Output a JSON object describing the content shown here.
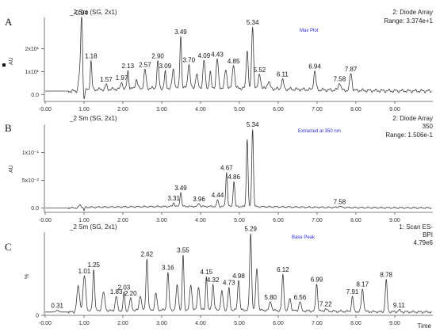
{
  "chart_data": [
    {
      "type": "line",
      "panel_label": "A",
      "sample_label": "_2 Sm (SG, 2x1)",
      "detector": "2: Diode Array",
      "range_text": "Range: 3.374e+1",
      "trace_label": "Max Plot",
      "extra_text": "",
      "ylabel": "AU",
      "yticks": [
        {
          "v": 0,
          "label": "0.0"
        },
        {
          "v": 10,
          "label": "1x10¹"
        },
        {
          "v": 20,
          "label": "2x10¹"
        }
      ],
      "ylim": [
        -3,
        33.7
      ],
      "xlim": [
        -0.02,
        9.98
      ],
      "baseline": 1.5,
      "noise": 0.8,
      "peaks": [
        {
          "x": 0.9,
          "y": 8.0,
          "w": 0.05
        },
        {
          "x": 0.94,
          "y": 29.0,
          "w": 0.03,
          "label": "0.94"
        },
        {
          "x": 1.0,
          "y": -4.0,
          "w": 0.03
        },
        {
          "x": 1.18,
          "y": 12.5,
          "w": 0.03,
          "label": "1.18"
        },
        {
          "x": 1.57,
          "y": 2.0,
          "w": 0.03,
          "label": "1.57"
        },
        {
          "x": 1.97,
          "y": 3.5,
          "w": 0.03,
          "label": "1.97"
        },
        {
          "x": 2.13,
          "y": 8.0,
          "w": 0.03,
          "label": "2.13"
        },
        {
          "x": 2.35,
          "y": 4.0,
          "w": 0.04
        },
        {
          "x": 2.57,
          "y": 8.0,
          "w": 0.04,
          "label": "2.57"
        },
        {
          "x": 2.9,
          "y": 11.5,
          "w": 0.035,
          "label": "2.90"
        },
        {
          "x": 3.09,
          "y": 7.0,
          "w": 0.03,
          "label": "3.09"
        },
        {
          "x": 3.3,
          "y": 8.0,
          "w": 0.04
        },
        {
          "x": 3.49,
          "y": 23.0,
          "w": 0.03,
          "label": "3.49"
        },
        {
          "x": 3.7,
          "y": 10.5,
          "w": 0.04,
          "label": "3.70"
        },
        {
          "x": 3.9,
          "y": 6.0,
          "w": 0.04
        },
        {
          "x": 4.09,
          "y": 12.0,
          "w": 0.04,
          "label": "4.09"
        },
        {
          "x": 4.25,
          "y": 7.0,
          "w": 0.03
        },
        {
          "x": 4.43,
          "y": 12.5,
          "w": 0.04,
          "label": "4.43"
        },
        {
          "x": 4.65,
          "y": 8.0,
          "w": 0.04
        },
        {
          "x": 4.85,
          "y": 10.5,
          "w": 0.04,
          "label": "4.85"
        },
        {
          "x": 5.2,
          "y": 17.0,
          "w": 0.035
        },
        {
          "x": 5.34,
          "y": 27.0,
          "w": 0.035,
          "label": "5.34"
        },
        {
          "x": 5.52,
          "y": 6.5,
          "w": 0.04,
          "label": "5.52"
        },
        {
          "x": 5.75,
          "y": 3.0,
          "w": 0.05
        },
        {
          "x": 6.11,
          "y": 4.0,
          "w": 0.04,
          "label": "6.11"
        },
        {
          "x": 6.94,
          "y": 8.0,
          "w": 0.04,
          "label": "6.94"
        },
        {
          "x": 7.58,
          "y": 3.5,
          "w": 0.04,
          "label": "7.58"
        },
        {
          "x": 7.87,
          "y": 7.5,
          "w": 0.04,
          "label": "7.87"
        }
      ]
    },
    {
      "type": "line",
      "panel_label": "B",
      "sample_label": "_2 Sm (SG, 2x1)",
      "detector": "2: Diode Array",
      "range_text": "Range: 1.506e-1",
      "trace_label": "Extracted at 350 nm",
      "extra_text": "350",
      "ylabel": "AU",
      "yticks": [
        {
          "v": 0,
          "label": "0.0"
        },
        {
          "v": 0.05,
          "label": "5x10⁻²"
        },
        {
          "v": 0.1,
          "label": "1x10⁻¹"
        }
      ],
      "ylim": [
        -0.008,
        0.1506
      ],
      "xlim": [
        -0.02,
        9.98
      ],
      "baseline": 0.0,
      "noise": 0.0015,
      "peaks": [
        {
          "x": 0.9,
          "y": 0.004,
          "w": 0.04
        },
        {
          "x": 1.0,
          "y": -0.006,
          "w": 0.02
        },
        {
          "x": 3.31,
          "y": 0.007,
          "w": 0.03,
          "label": "3.31"
        },
        {
          "x": 3.49,
          "y": 0.026,
          "w": 0.03,
          "label": "3.49"
        },
        {
          "x": 3.96,
          "y": 0.006,
          "w": 0.03,
          "label": "3.96"
        },
        {
          "x": 4.44,
          "y": 0.012,
          "w": 0.03,
          "label": "4.44"
        },
        {
          "x": 4.67,
          "y": 0.062,
          "w": 0.03,
          "label": "4.67"
        },
        {
          "x": 4.86,
          "y": 0.046,
          "w": 0.03,
          "label": "4.86"
        },
        {
          "x": 5.2,
          "y": 0.123,
          "w": 0.03
        },
        {
          "x": 5.34,
          "y": 0.141,
          "w": 0.03,
          "label": "5.34"
        },
        {
          "x": 7.58,
          "y": 0.0025,
          "w": 0.04,
          "label": "7.58"
        }
      ]
    },
    {
      "type": "line",
      "panel_label": "C",
      "sample_label": "_2 Sm (SG, 2x1)",
      "detector": "1: Scan ES-",
      "range_text": "4.79e6",
      "trace_label": "Base Peak",
      "extra_text": "BPI",
      "ylabel": "%",
      "yticks": [
        {
          "v": 0,
          "label": "0"
        }
      ],
      "ylim": [
        0,
        100
      ],
      "xlim": [
        -0.02,
        9.98
      ],
      "xlabel": "Time",
      "xticks": [
        {
          "v": 0,
          "label": "-0.00"
        },
        {
          "v": 1,
          "label": "1.00"
        },
        {
          "v": 2,
          "label": "2.00"
        },
        {
          "v": 3,
          "label": "3.00"
        },
        {
          "v": 4,
          "label": "4.00"
        },
        {
          "v": 5,
          "label": "5.00"
        },
        {
          "v": 6,
          "label": "6.00"
        },
        {
          "v": 7,
          "label": "7.00"
        },
        {
          "v": 8,
          "label": "8.00"
        },
        {
          "v": 9,
          "label": "9.00"
        }
      ],
      "baseline": 4.0,
      "noise": 1.5,
      "peaks": [
        {
          "x": 0.31,
          "y": 2.0,
          "w": 0.05,
          "label": "0.31"
        },
        {
          "x": 0.85,
          "y": 30.0,
          "w": 0.05
        },
        {
          "x": 1.01,
          "y": 42.0,
          "w": 0.05,
          "label": "1.01"
        },
        {
          "x": 1.25,
          "y": 50.0,
          "w": 0.035,
          "label": "1.25"
        },
        {
          "x": 1.5,
          "y": 22.0,
          "w": 0.05
        },
        {
          "x": 1.83,
          "y": 17.0,
          "w": 0.04,
          "label": "1.83"
        },
        {
          "x": 2.03,
          "y": 22.0,
          "w": 0.03,
          "label": "2.03"
        },
        {
          "x": 2.2,
          "y": 14.0,
          "w": 0.04,
          "label": "2.20"
        },
        {
          "x": 2.45,
          "y": 18.0,
          "w": 0.04
        },
        {
          "x": 2.62,
          "y": 62.0,
          "w": 0.035,
          "label": "2.62"
        },
        {
          "x": 2.85,
          "y": 20.0,
          "w": 0.04
        },
        {
          "x": 3.16,
          "y": 45.0,
          "w": 0.035,
          "label": "3.16"
        },
        {
          "x": 3.4,
          "y": 30.0,
          "w": 0.04
        },
        {
          "x": 3.55,
          "y": 66.0,
          "w": 0.03,
          "label": "3.55"
        },
        {
          "x": 3.75,
          "y": 30.0,
          "w": 0.04
        },
        {
          "x": 3.95,
          "y": 28.0,
          "w": 0.04
        },
        {
          "x": 4.15,
          "y": 41.0,
          "w": 0.03,
          "label": "4.15"
        },
        {
          "x": 4.32,
          "y": 31.0,
          "w": 0.035,
          "label": "4.32"
        },
        {
          "x": 4.55,
          "y": 22.0,
          "w": 0.04
        },
        {
          "x": 4.73,
          "y": 26.0,
          "w": 0.035,
          "label": "4.73"
        },
        {
          "x": 4.98,
          "y": 37.0,
          "w": 0.035,
          "label": "4.98"
        },
        {
          "x": 5.29,
          "y": 92.0,
          "w": 0.035,
          "label": "5.29"
        },
        {
          "x": 5.45,
          "y": 50.0,
          "w": 0.04
        },
        {
          "x": 5.8,
          "y": 11.0,
          "w": 0.04,
          "label": "5.80"
        },
        {
          "x": 6.12,
          "y": 43.0,
          "w": 0.035,
          "label": "6.12"
        },
        {
          "x": 6.3,
          "y": 15.0,
          "w": 0.04
        },
        {
          "x": 6.56,
          "y": 11.0,
          "w": 0.04,
          "label": "6.56"
        },
        {
          "x": 6.99,
          "y": 33.0,
          "w": 0.035,
          "label": "6.99"
        },
        {
          "x": 7.22,
          "y": 3.0,
          "w": 0.04,
          "label": "7.22"
        },
        {
          "x": 7.91,
          "y": 18.0,
          "w": 0.035,
          "label": "7.91"
        },
        {
          "x": 8.17,
          "y": 27.0,
          "w": 0.04,
          "label": "8.17"
        },
        {
          "x": 8.78,
          "y": 38.0,
          "w": 0.035,
          "label": "8.78"
        },
        {
          "x": 9.11,
          "y": 2.0,
          "w": 0.04,
          "label": "9.11"
        }
      ]
    }
  ]
}
